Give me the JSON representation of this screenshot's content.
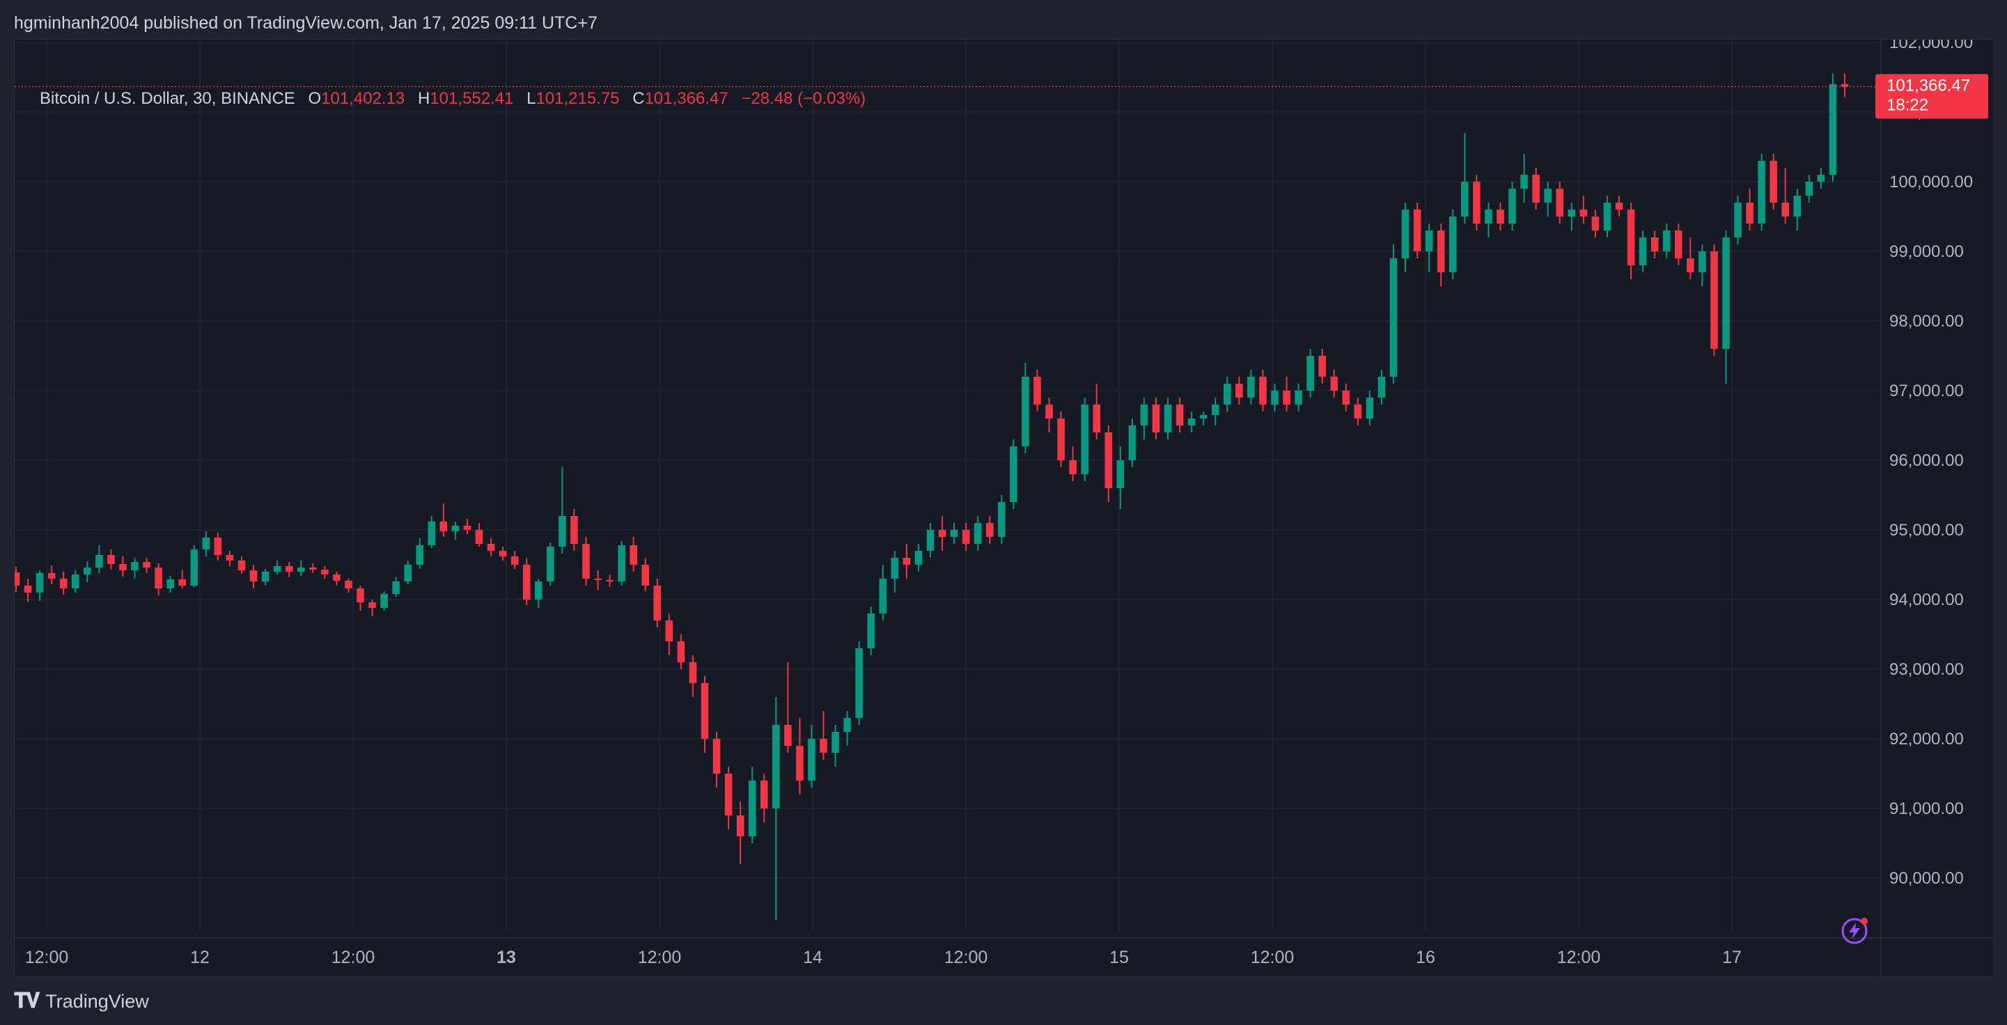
{
  "header": {
    "published_text": "hgminhanh2004 published on TradingView.com, Jan 17, 2025 09:11 UTC+7"
  },
  "legend": {
    "symbol": "Bitcoin / U.S. Dollar, 30, BINANCE",
    "open_label": "O",
    "open_value": "101,402.13",
    "high_label": "H",
    "high_value": "101,552.41",
    "low_label": "L",
    "low_value": "101,215.75",
    "close_label": "C",
    "close_value": "101,366.47",
    "change": "−28.48 (−0.03%)"
  },
  "price_tag": {
    "price": "101,366.47",
    "countdown": "18:22"
  },
  "footer": {
    "brand": "TradingView"
  },
  "colors": {
    "up": "#089981",
    "down": "#f23645",
    "grid": "#232734",
    "background": "#161a25",
    "text": "#d1d4dc"
  },
  "chart_data": {
    "type": "candlestick",
    "title": "Bitcoin / U.S. Dollar, 30, BINANCE",
    "y_ticks": [
      90000,
      91000,
      92000,
      93000,
      94000,
      95000,
      96000,
      97000,
      98000,
      99000,
      100000,
      101000,
      102000
    ],
    "y_tick_labels": [
      "90,000.00",
      "91,000.00",
      "92,000.00",
      "93,000.00",
      "94,000.00",
      "95,000.00",
      "96,000.00",
      "97,000.00",
      "98,000.00",
      "99,000.00",
      "100,000.00",
      "101,000.00",
      "102,000.00"
    ],
    "x_tick_labels": [
      "12:00",
      "12",
      "12:00",
      "13",
      "12:00",
      "14",
      "12:00",
      "15",
      "12:00",
      "16",
      "12:00",
      "17"
    ],
    "x_tick_bold": [
      false,
      false,
      false,
      true,
      false,
      false,
      false,
      false,
      false,
      false,
      false,
      false
    ],
    "last_price": 101366.47,
    "ohlc": [
      [
        94390,
        94470,
        94110,
        94200
      ],
      [
        94200,
        94300,
        93960,
        94100
      ],
      [
        94100,
        94420,
        93980,
        94380
      ],
      [
        94380,
        94490,
        94220,
        94300
      ],
      [
        94300,
        94400,
        94070,
        94160
      ],
      [
        94160,
        94420,
        94100,
        94360
      ],
      [
        94360,
        94550,
        94250,
        94460
      ],
      [
        94460,
        94780,
        94380,
        94640
      ],
      [
        94640,
        94720,
        94430,
        94510
      ],
      [
        94510,
        94620,
        94330,
        94420
      ],
      [
        94420,
        94600,
        94300,
        94540
      ],
      [
        94540,
        94600,
        94380,
        94460
      ],
      [
        94460,
        94520,
        94060,
        94160
      ],
      [
        94160,
        94340,
        94100,
        94290
      ],
      [
        94290,
        94420,
        94160,
        94200
      ],
      [
        94200,
        94780,
        94180,
        94720
      ],
      [
        94720,
        94980,
        94620,
        94890
      ],
      [
        94890,
        94960,
        94560,
        94640
      ],
      [
        94640,
        94700,
        94480,
        94560
      ],
      [
        94560,
        94620,
        94370,
        94420
      ],
      [
        94420,
        94500,
        94160,
        94260
      ],
      [
        94260,
        94440,
        94200,
        94400
      ],
      [
        94400,
        94560,
        94360,
        94480
      ],
      [
        94480,
        94540,
        94320,
        94400
      ],
      [
        94400,
        94560,
        94340,
        94460
      ],
      [
        94460,
        94520,
        94380,
        94430
      ],
      [
        94430,
        94480,
        94300,
        94360
      ],
      [
        94360,
        94400,
        94200,
        94270
      ],
      [
        94270,
        94300,
        94100,
        94160
      ],
      [
        94160,
        94200,
        93840,
        93960
      ],
      [
        93960,
        94000,
        93760,
        93880
      ],
      [
        93880,
        94120,
        93840,
        94080
      ],
      [
        94080,
        94320,
        94040,
        94260
      ],
      [
        94260,
        94560,
        94220,
        94500
      ],
      [
        94500,
        94880,
        94440,
        94780
      ],
      [
        94780,
        95200,
        94740,
        95120
      ],
      [
        95120,
        95380,
        94900,
        94980
      ],
      [
        94980,
        95120,
        94860,
        95060
      ],
      [
        95060,
        95160,
        94940,
        95000
      ],
      [
        95000,
        95100,
        94760,
        94800
      ],
      [
        94800,
        94880,
        94620,
        94700
      ],
      [
        94700,
        94760,
        94560,
        94620
      ],
      [
        94620,
        94700,
        94440,
        94500
      ],
      [
        94500,
        94600,
        93920,
        94000
      ],
      [
        94000,
        94300,
        93880,
        94260
      ],
      [
        94260,
        94820,
        94200,
        94760
      ],
      [
        94760,
        95900,
        94660,
        95200
      ],
      [
        95200,
        95300,
        94700,
        94800
      ],
      [
        94800,
        94900,
        94200,
        94300
      ],
      [
        94300,
        94420,
        94140,
        94280
      ],
      [
        94280,
        94360,
        94180,
        94260
      ],
      [
        94260,
        94840,
        94200,
        94780
      ],
      [
        94780,
        94900,
        94400,
        94500
      ],
      [
        94500,
        94600,
        94120,
        94200
      ],
      [
        94200,
        94300,
        93600,
        93700
      ],
      [
        93700,
        93800,
        93200,
        93400
      ],
      [
        93400,
        93500,
        93000,
        93100
      ],
      [
        93100,
        93200,
        92600,
        92800
      ],
      [
        92800,
        92900,
        91800,
        92000
      ],
      [
        92000,
        92100,
        91300,
        91500
      ],
      [
        91500,
        91600,
        90700,
        90900
      ],
      [
        90900,
        91100,
        90200,
        90600
      ],
      [
        90600,
        91600,
        90500,
        91400
      ],
      [
        91400,
        91500,
        90800,
        91000
      ],
      [
        91000,
        92600,
        89400,
        92200
      ],
      [
        92200,
        93100,
        91800,
        91900
      ],
      [
        91900,
        92300,
        91200,
        91400
      ],
      [
        91400,
        92200,
        91300,
        92000
      ],
      [
        92000,
        92400,
        91700,
        91800
      ],
      [
        91800,
        92200,
        91600,
        92100
      ],
      [
        92100,
        92400,
        91900,
        92300
      ],
      [
        92300,
        93400,
        92200,
        93300
      ],
      [
        93300,
        93900,
        93200,
        93800
      ],
      [
        93800,
        94500,
        93700,
        94300
      ],
      [
        94300,
        94700,
        94100,
        94600
      ],
      [
        94600,
        94800,
        94300,
        94500
      ],
      [
        94500,
        94800,
        94400,
        94700
      ],
      [
        94700,
        95100,
        94600,
        95000
      ],
      [
        95000,
        95200,
        94700,
        94900
      ],
      [
        94900,
        95100,
        94800,
        95000
      ],
      [
        95000,
        95100,
        94700,
        94800
      ],
      [
        94800,
        95200,
        94700,
        95100
      ],
      [
        95100,
        95200,
        94800,
        94900
      ],
      [
        94900,
        95500,
        94800,
        95400
      ],
      [
        95400,
        96300,
        95300,
        96200
      ],
      [
        96200,
        97400,
        96100,
        97200
      ],
      [
        97200,
        97300,
        96700,
        96800
      ],
      [
        96800,
        96900,
        96400,
        96600
      ],
      [
        96600,
        96700,
        95900,
        96000
      ],
      [
        96000,
        96200,
        95700,
        95800
      ],
      [
        95800,
        96900,
        95700,
        96800
      ],
      [
        96800,
        97100,
        96300,
        96400
      ],
      [
        96400,
        96500,
        95400,
        95600
      ],
      [
        95600,
        96200,
        95300,
        96000
      ],
      [
        96000,
        96600,
        95900,
        96500
      ],
      [
        96500,
        96900,
        96300,
        96800
      ],
      [
        96800,
        96900,
        96300,
        96400
      ],
      [
        96400,
        96900,
        96300,
        96800
      ],
      [
        96800,
        96900,
        96400,
        96500
      ],
      [
        96500,
        96700,
        96400,
        96600
      ],
      [
        96600,
        96700,
        96500,
        96650
      ],
      [
        96650,
        96900,
        96500,
        96800
      ],
      [
        96800,
        97200,
        96700,
        97100
      ],
      [
        97100,
        97200,
        96800,
        96900
      ],
      [
        96900,
        97300,
        96800,
        97200
      ],
      [
        97200,
        97300,
        96700,
        96800
      ],
      [
        96800,
        97100,
        96700,
        97000
      ],
      [
        97000,
        97200,
        96700,
        96800
      ],
      [
        96800,
        97100,
        96700,
        97000
      ],
      [
        97000,
        97600,
        96900,
        97500
      ],
      [
        97500,
        97600,
        97100,
        97200
      ],
      [
        97200,
        97300,
        96900,
        97000
      ],
      [
        97000,
        97100,
        96700,
        96800
      ],
      [
        96800,
        96900,
        96500,
        96600
      ],
      [
        96600,
        97000,
        96500,
        96900
      ],
      [
        96900,
        97300,
        96800,
        97200
      ],
      [
        97200,
        99100,
        97100,
        98900
      ],
      [
        98900,
        99700,
        98700,
        99600
      ],
      [
        99600,
        99700,
        98900,
        99000
      ],
      [
        99000,
        99400,
        98700,
        99300
      ],
      [
        99300,
        99400,
        98500,
        98700
      ],
      [
        98700,
        99600,
        98600,
        99500
      ],
      [
        99500,
        100700,
        99400,
        100000
      ],
      [
        100000,
        100100,
        99300,
        99400
      ],
      [
        99400,
        99700,
        99200,
        99600
      ],
      [
        99600,
        99700,
        99300,
        99400
      ],
      [
        99400,
        100000,
        99300,
        99900
      ],
      [
        99900,
        100400,
        99700,
        100100
      ],
      [
        100100,
        100200,
        99600,
        99700
      ],
      [
        99700,
        100000,
        99500,
        99900
      ],
      [
        99900,
        100000,
        99400,
        99500
      ],
      [
        99500,
        99700,
        99300,
        99600
      ],
      [
        99600,
        99800,
        99400,
        99500
      ],
      [
        99500,
        99600,
        99200,
        99300
      ],
      [
        99300,
        99800,
        99200,
        99700
      ],
      [
        99700,
        99800,
        99500,
        99600
      ],
      [
        99600,
        99700,
        98600,
        98800
      ],
      [
        98800,
        99300,
        98700,
        99200
      ],
      [
        99200,
        99300,
        98900,
        99000
      ],
      [
        99000,
        99400,
        98900,
        99300
      ],
      [
        99300,
        99400,
        98800,
        98900
      ],
      [
        98900,
        99200,
        98600,
        98700
      ],
      [
        98700,
        99100,
        98500,
        99000
      ],
      [
        99000,
        99100,
        97500,
        97600
      ],
      [
        97600,
        99300,
        97100,
        99200
      ],
      [
        99200,
        99800,
        99100,
        99700
      ],
      [
        99700,
        99900,
        99300,
        99400
      ],
      [
        99400,
        100400,
        99300,
        100300
      ],
      [
        100300,
        100400,
        99600,
        99700
      ],
      [
        99700,
        100200,
        99400,
        99500
      ],
      [
        99500,
        99900,
        99300,
        99800
      ],
      [
        99800,
        100100,
        99700,
        100000
      ],
      [
        100000,
        100200,
        99900,
        100100
      ],
      [
        100100,
        101552,
        100000,
        101402
      ],
      [
        101402,
        101552,
        101216,
        101366
      ]
    ]
  }
}
